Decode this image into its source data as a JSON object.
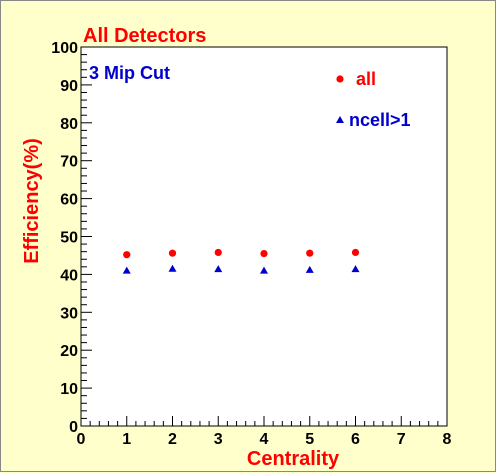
{
  "chart_data": {
    "type": "scatter",
    "title": "All Detectors",
    "annotation": "3 Mip Cut",
    "xlabel": "Centrality",
    "ylabel": "Efficiency(%)",
    "xlim": [
      0,
      8
    ],
    "ylim": [
      0,
      100
    ],
    "x_ticks": [
      "0",
      "1",
      "2",
      "3",
      "4",
      "5",
      "6",
      "7",
      "8"
    ],
    "y_ticks": [
      "0",
      "10",
      "20",
      "30",
      "40",
      "50",
      "60",
      "70",
      "80",
      "90",
      "100"
    ],
    "grid": false,
    "legend_position": "top-right",
    "series": [
      {
        "name": "all",
        "marker": "circle",
        "color": "#ff0000",
        "x": [
          1,
          2,
          3,
          4,
          5,
          6
        ],
        "y": [
          45.2,
          45.6,
          45.8,
          45.5,
          45.6,
          45.8
        ]
      },
      {
        "name": "ncell>1",
        "marker": "triangle",
        "color": "#0000cc",
        "x": [
          1,
          2,
          3,
          4,
          5,
          6
        ],
        "y": [
          41.0,
          41.5,
          41.4,
          41.0,
          41.2,
          41.4
        ]
      }
    ]
  }
}
